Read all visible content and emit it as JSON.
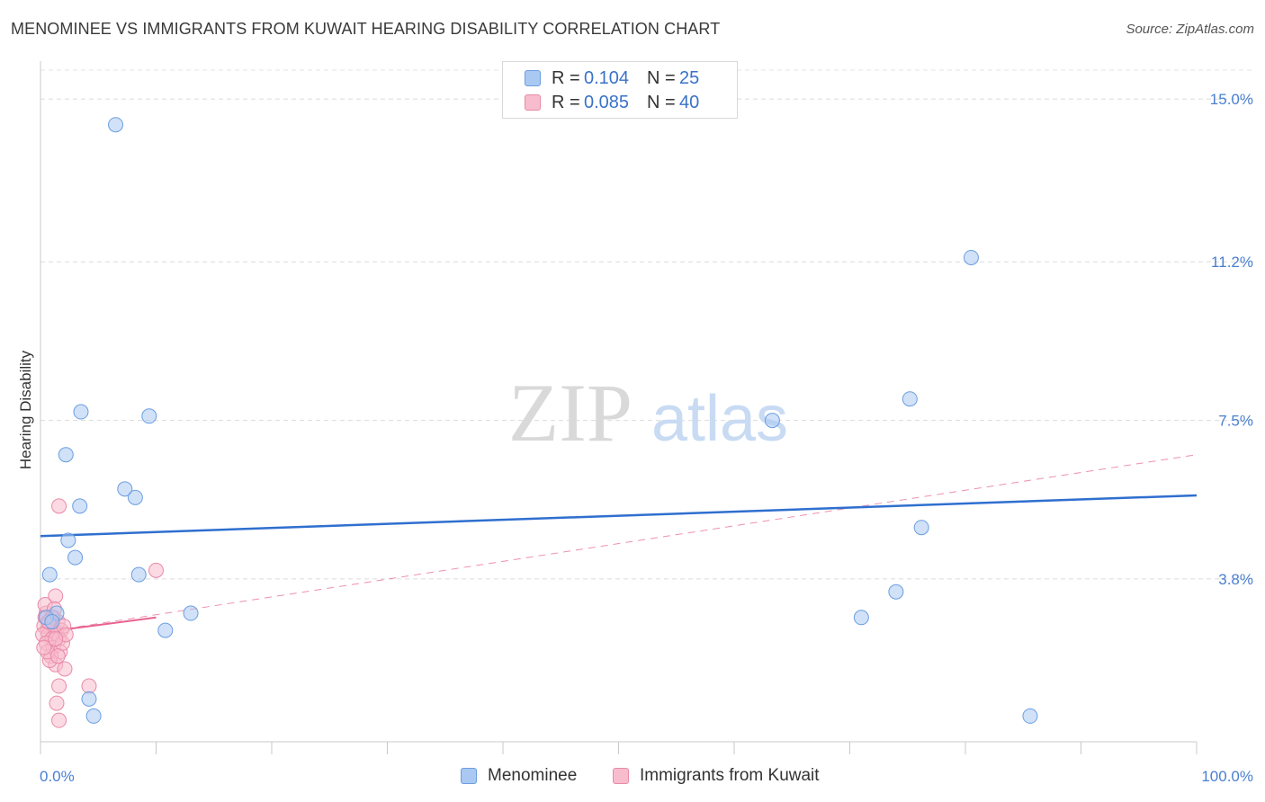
{
  "header": {
    "title": "MENOMINEE VS IMMIGRANTS FROM KUWAIT HEARING DISABILITY CORRELATION CHART",
    "source": "Source: ZipAtlas.com"
  },
  "watermark": {
    "zip": "ZIP",
    "atlas": "atlas"
  },
  "legend": {
    "rows": [
      {
        "r_label": "R =",
        "r_value": "0.104",
        "n_label": "N =",
        "n_value": "25",
        "color": "#a9c8f2",
        "border": "#6b9ee0"
      },
      {
        "r_label": "R =",
        "r_value": "0.085",
        "n_label": "N =",
        "n_value": "40",
        "color": "#f7bccd",
        "border": "#e98aa6"
      }
    ]
  },
  "bottom_legend": {
    "menominee": "Menominee",
    "kuwait": "Immigrants from Kuwait"
  },
  "colors": {
    "menominee_fill": "#a9c8f2",
    "menominee_stroke": "#6b9ee0",
    "menominee_line": "#2f6fcf",
    "kuwait_fill": "#f7bccd",
    "kuwait_stroke": "#e98aa6",
    "kuwait_line": "#e8628e",
    "tick_text": "#4a7fd0"
  },
  "chart_data": {
    "type": "scatter",
    "title": "MENOMINEE VS IMMIGRANTS FROM KUWAIT HEARING DISABILITY CORRELATION CHART",
    "xlabel": "",
    "ylabel": "Hearing Disability",
    "xlim": [
      0,
      100
    ],
    "ylim": [
      0,
      15.8
    ],
    "x_tick_labels": [
      "0.0%",
      "100.0%"
    ],
    "y_ticks": [
      3.8,
      7.5,
      11.2,
      15.0
    ],
    "y_tick_labels": [
      "3.8%",
      "7.5%",
      "11.2%",
      "15.0%"
    ],
    "grid": "horizontal dashed",
    "legend_position": "top-center",
    "series": [
      {
        "name": "Menominee",
        "r": 0.104,
        "n": 25,
        "points": [
          [
            6.5,
            14.4
          ],
          [
            80.5,
            11.3
          ],
          [
            3.5,
            7.7
          ],
          [
            9.4,
            7.6
          ],
          [
            75.2,
            8.0
          ],
          [
            63.3,
            7.5
          ],
          [
            2.2,
            6.7
          ],
          [
            7.3,
            5.9
          ],
          [
            8.2,
            5.7
          ],
          [
            3.4,
            5.5
          ],
          [
            76.2,
            5.0
          ],
          [
            2.4,
            4.7
          ],
          [
            3.0,
            4.3
          ],
          [
            0.8,
            3.9
          ],
          [
            8.5,
            3.9
          ],
          [
            74.0,
            3.5
          ],
          [
            1.4,
            3.0
          ],
          [
            13.0,
            3.0
          ],
          [
            71.0,
            2.9
          ],
          [
            10.8,
            2.6
          ],
          [
            4.2,
            1.0
          ],
          [
            4.6,
            0.6
          ],
          [
            85.6,
            0.6
          ],
          [
            0.5,
            2.9
          ],
          [
            1.0,
            2.8
          ]
        ],
        "trend": {
          "x": [
            0,
            100
          ],
          "y": [
            4.8,
            5.75
          ]
        }
      },
      {
        "name": "Immigrants from Kuwait",
        "r": 0.085,
        "n": 40,
        "points": [
          [
            1.6,
            5.5
          ],
          [
            10.0,
            4.0
          ],
          [
            1.3,
            3.4
          ],
          [
            0.5,
            3.0
          ],
          [
            1.1,
            2.9
          ],
          [
            0.4,
            2.9
          ],
          [
            0.8,
            2.8
          ],
          [
            1.5,
            2.8
          ],
          [
            0.3,
            2.7
          ],
          [
            0.9,
            2.7
          ],
          [
            1.2,
            2.6
          ],
          [
            0.6,
            2.6
          ],
          [
            1.8,
            2.6
          ],
          [
            0.7,
            2.5
          ],
          [
            1.4,
            2.5
          ],
          [
            0.2,
            2.5
          ],
          [
            1.0,
            2.4
          ],
          [
            1.6,
            2.4
          ],
          [
            0.5,
            2.3
          ],
          [
            1.1,
            2.2
          ],
          [
            1.7,
            2.1
          ],
          [
            0.9,
            2.0
          ],
          [
            1.3,
            1.8
          ],
          [
            2.1,
            1.7
          ],
          [
            1.6,
            1.3
          ],
          [
            4.2,
            1.3
          ],
          [
            1.4,
            0.9
          ],
          [
            1.6,
            0.5
          ],
          [
            0.4,
            3.2
          ],
          [
            2.0,
            2.7
          ],
          [
            1.9,
            2.3
          ],
          [
            0.8,
            1.9
          ],
          [
            1.2,
            3.1
          ],
          [
            0.6,
            2.1
          ],
          [
            1.5,
            2.0
          ],
          [
            0.3,
            2.2
          ],
          [
            1.0,
            2.9
          ],
          [
            2.2,
            2.5
          ],
          [
            0.7,
            2.8
          ],
          [
            1.3,
            2.4
          ]
        ],
        "trend_solid": {
          "x": [
            0,
            10
          ],
          "y": [
            2.55,
            2.9
          ]
        },
        "trend_dashed": {
          "x": [
            0,
            100
          ],
          "y": [
            2.55,
            6.7
          ]
        }
      }
    ]
  }
}
